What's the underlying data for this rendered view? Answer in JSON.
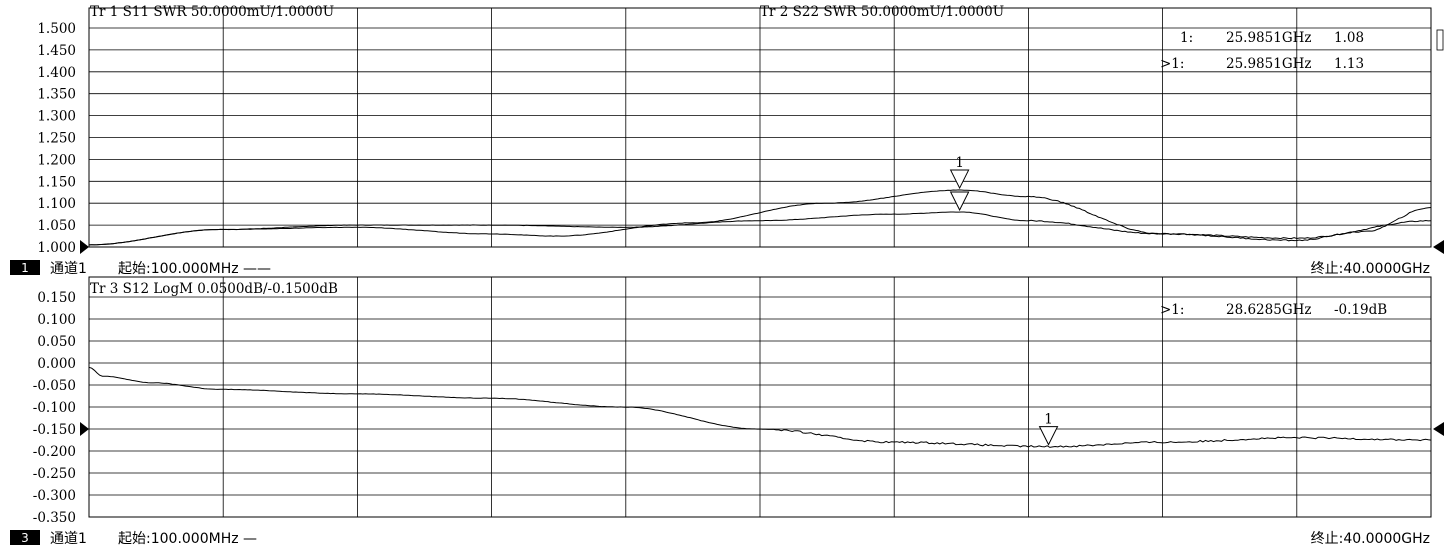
{
  "panel1": {
    "trace1_header": "Tr 1  S11 SWR 50.0000mU/1.0000U",
    "trace2_header": "Tr 2  S22 SWR 50.0000mU/1.0000U",
    "marker_table": [
      {
        "prefix": "1:",
        "freq": "25.9851GHz",
        "value": "1.08"
      },
      {
        "prefix": ">1:",
        "freq": "25.9851GHz",
        "value": "1.13"
      }
    ],
    "marker_flag": "1",
    "footer": {
      "channel_num": "1",
      "channel_label": "通道1",
      "start": "起始:100.000MHz ——",
      "stop": "终止:40.0000GHz"
    }
  },
  "panel2": {
    "trace3_header": "Tr 3  S12 LogM 0.0500dB/-0.1500dB",
    "marker_table": [
      {
        "prefix": ">1:",
        "freq": "28.6285GHz",
        "value": "-0.19dB"
      }
    ],
    "marker_flag": "1",
    "footer": {
      "channel_num": "3",
      "channel_label": "通道1",
      "start": "起始:100.000MHz —",
      "stop": "终止:40.0000GHz"
    }
  },
  "chart_data": [
    {
      "type": "line",
      "x_unit": "GHz",
      "xlim": [
        0.1,
        40.0
      ],
      "ylim": [
        1.0,
        1.5
      ],
      "yticks": [
        "1.500",
        "1.450",
        "1.400",
        "1.350",
        "1.300",
        "1.250",
        "1.200",
        "1.150",
        "1.100",
        "1.050",
        "1.000"
      ],
      "grid": true,
      "series": [
        {
          "name": "S11",
          "color": "#000000",
          "x": [
            0.1,
            4,
            8,
            12,
            16,
            20,
            24,
            26,
            28,
            32,
            36,
            40
          ],
          "y": [
            1.005,
            1.04,
            1.05,
            1.05,
            1.045,
            1.06,
            1.075,
            1.08,
            1.06,
            1.03,
            1.02,
            1.06
          ]
        },
        {
          "name": "S22",
          "color": "#000000",
          "x": [
            0.1,
            4,
            8,
            12,
            14,
            18,
            22,
            26,
            28,
            32,
            36,
            38,
            40
          ],
          "y": [
            1.005,
            1.04,
            1.045,
            1.03,
            1.025,
            1.055,
            1.1,
            1.13,
            1.115,
            1.03,
            1.015,
            1.035,
            1.09
          ]
        }
      ],
      "markers": [
        {
          "series": "S11",
          "x": 25.9851,
          "y": 1.08
        },
        {
          "series": "S22",
          "x": 25.9851,
          "y": 1.13
        }
      ],
      "reference_level": 1.0
    },
    {
      "type": "line",
      "x_unit": "GHz",
      "xlim": [
        0.1,
        40.0
      ],
      "ylim": [
        -0.35,
        0.15
      ],
      "yticks": [
        "0.150",
        "0.100",
        "0.050",
        "0.000",
        "-0.050",
        "-0.100",
        "-0.150",
        "-0.200",
        "-0.250",
        "-0.300",
        "-0.350"
      ],
      "grid": true,
      "series": [
        {
          "name": "S12",
          "color": "#000000",
          "x": [
            0.1,
            0.5,
            2,
            4,
            8,
            12,
            16,
            20,
            24,
            28.6285,
            32,
            36,
            40
          ],
          "y": [
            -0.01,
            -0.03,
            -0.045,
            -0.06,
            -0.07,
            -0.08,
            -0.1,
            -0.15,
            -0.18,
            -0.19,
            -0.18,
            -0.17,
            -0.175
          ]
        }
      ],
      "markers": [
        {
          "series": "S12",
          "x": 28.6285,
          "y": -0.19
        }
      ],
      "reference_level": -0.15
    }
  ]
}
